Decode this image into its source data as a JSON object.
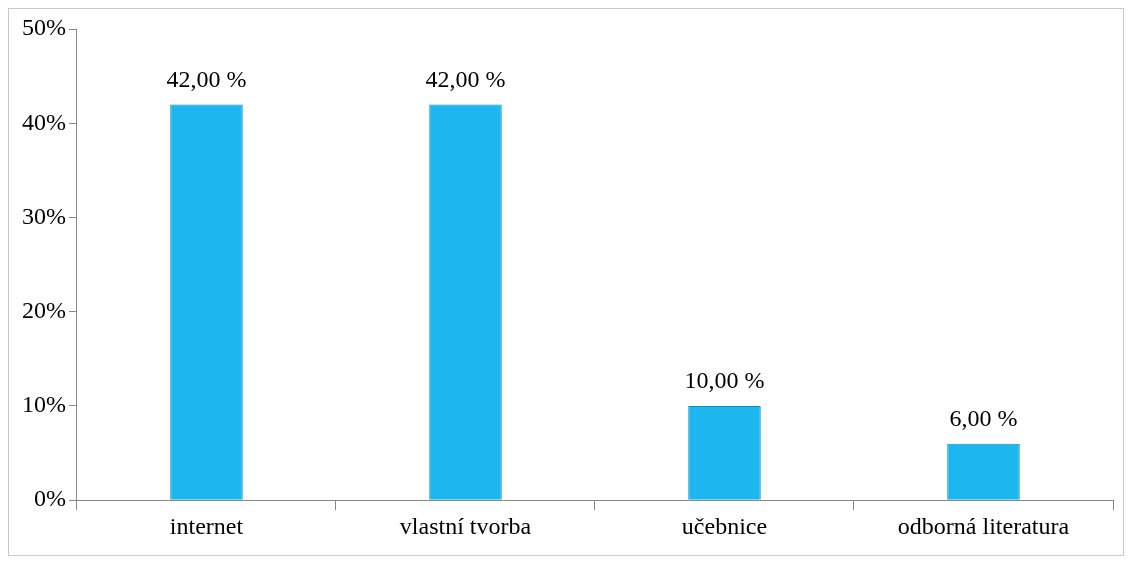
{
  "chart_data": {
    "type": "bar",
    "categories": [
      "internet",
      "vlastní tvorba",
      "učebnice",
      "odborná literatura"
    ],
    "values": [
      42,
      42,
      10,
      6
    ],
    "color": "#1eb6ee",
    "value_labels": [
      "42,00 %",
      "42,00 %",
      "10,00 %",
      "6,00 %"
    ],
    "ylim": [
      0,
      50
    ],
    "yticks": [
      {
        "value": 0,
        "label": "0%"
      },
      {
        "value": 10,
        "label": "10%"
      },
      {
        "value": 20,
        "label": "20%"
      },
      {
        "value": 30,
        "label": "30%"
      },
      {
        "value": 40,
        "label": "40%"
      },
      {
        "value": 50,
        "label": "50%"
      }
    ],
    "legend": false
  }
}
